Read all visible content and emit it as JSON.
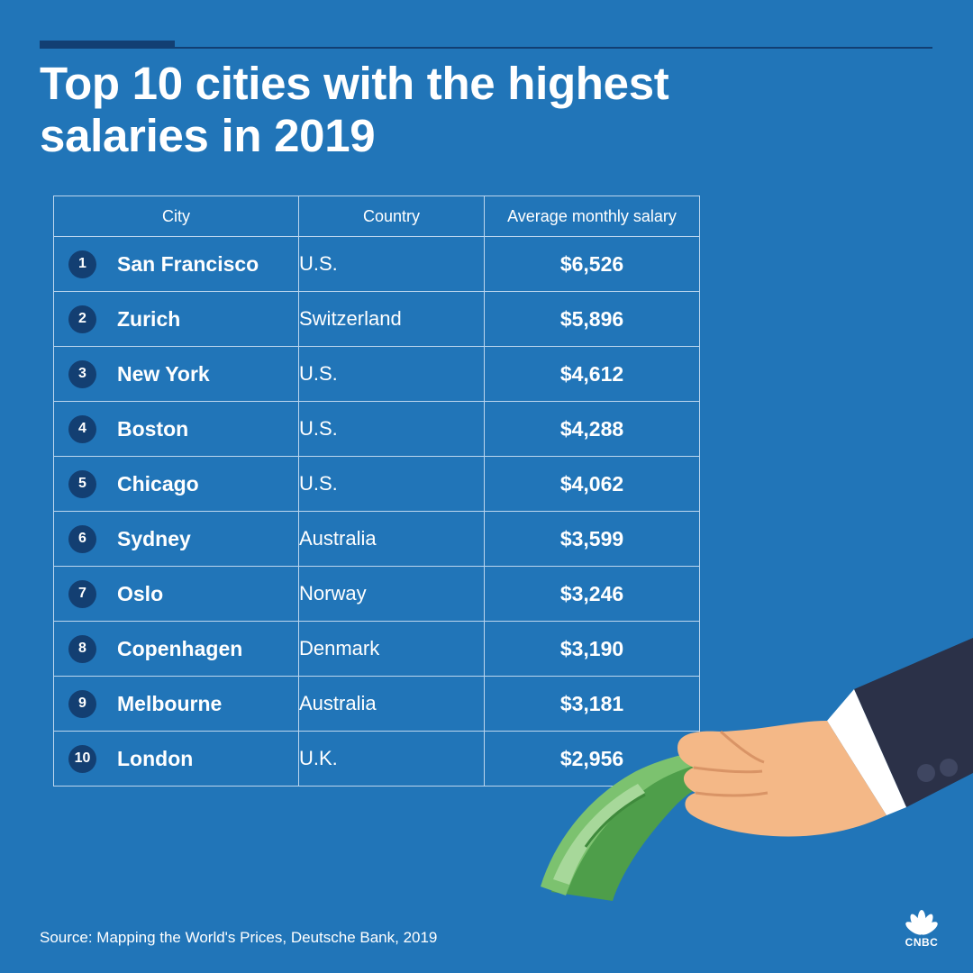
{
  "title": "Top 10 cities with the highest salaries in 2019",
  "table": {
    "headers": [
      "City",
      "Country",
      "Average monthly salary"
    ],
    "rows": [
      {
        "rank": "1",
        "city": "San Francisco",
        "country": "U.S.",
        "salary": "$6,526"
      },
      {
        "rank": "2",
        "city": "Zurich",
        "country": "Switzerland",
        "salary": "$5,896"
      },
      {
        "rank": "3",
        "city": "New York",
        "country": "U.S.",
        "salary": "$4,612"
      },
      {
        "rank": "4",
        "city": "Boston",
        "country": "U.S.",
        "salary": "$4,288"
      },
      {
        "rank": "5",
        "city": "Chicago",
        "country": "U.S.",
        "salary": "$4,062"
      },
      {
        "rank": "6",
        "city": "Sydney",
        "country": "Australia",
        "salary": "$3,599"
      },
      {
        "rank": "7",
        "city": "Oslo",
        "country": "Norway",
        "salary": "$3,246"
      },
      {
        "rank": "8",
        "city": "Copenhagen",
        "country": "Denmark",
        "salary": "$3,190"
      },
      {
        "rank": "9",
        "city": "Melbourne",
        "country": "Australia",
        "salary": "$3,181"
      },
      {
        "rank": "10",
        "city": "London",
        "country": "U.K.",
        "salary": "$2,956"
      }
    ]
  },
  "chart_data": {
    "type": "table",
    "title": "Top 10 cities with the highest salaries in 2019",
    "columns": [
      "City",
      "Country",
      "Average monthly salary"
    ],
    "categories": [
      "San Francisco",
      "Zurich",
      "New York",
      "Boston",
      "Chicago",
      "Sydney",
      "Oslo",
      "Copenhagen",
      "Melbourne",
      "London"
    ],
    "series": [
      {
        "name": "Average monthly salary",
        "values": [
          6526,
          5896,
          4612,
          4288,
          4062,
          3599,
          3246,
          3190,
          3181,
          2956
        ]
      }
    ]
  },
  "source": "Source: Mapping the World's Prices, Deutsche Bank, 2019",
  "logo_text": "CNBC",
  "colors": {
    "background": "#2175b8",
    "rule": "#123f73",
    "rank_badge": "#133f72",
    "table_lines": "#bcd6ee",
    "text": "#ffffff"
  },
  "icons": [
    "hand-with-money-illustration",
    "cnbc-peacock-logo"
  ]
}
